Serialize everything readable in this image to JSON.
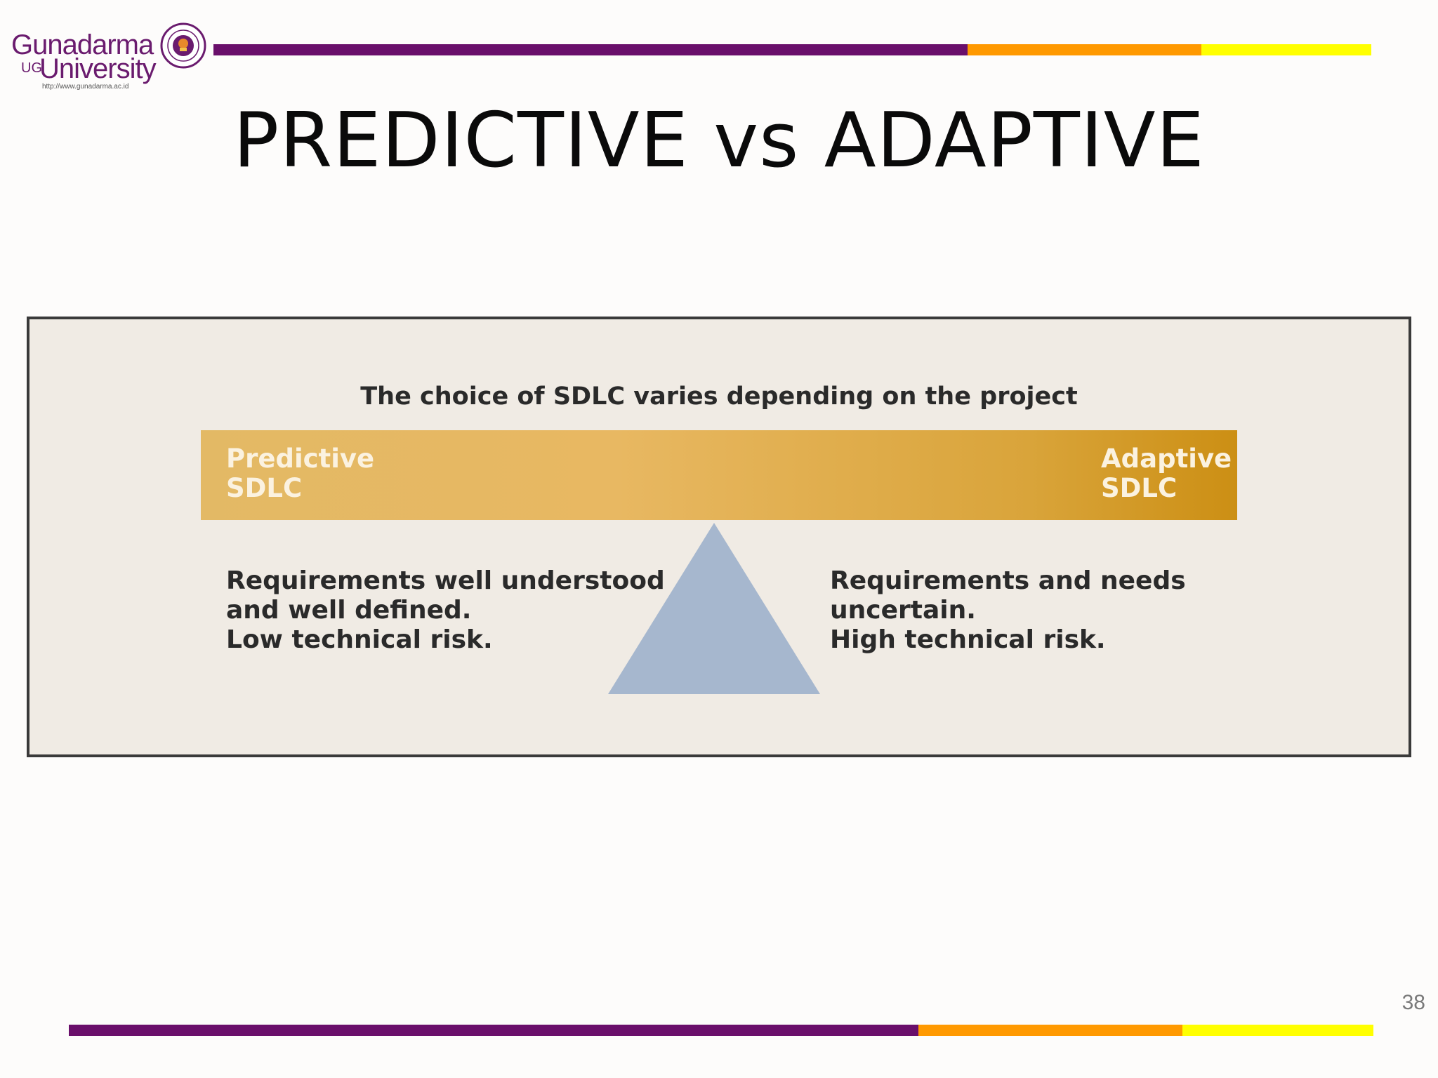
{
  "header": {
    "logo_name": "Gunadarma",
    "logo_ug": "UG",
    "logo_university": "University",
    "logo_url": "http://www.gunadarma.ac.id"
  },
  "colors": {
    "purple": "#6a0f6b",
    "orange": "#ff9900",
    "yellow": "#ffff00",
    "beam_start": "#e3b965",
    "beam_end": "#cc8f14",
    "pivot": "#a6b7ce"
  },
  "title": "PREDICTIVE vs ADAPTIVE",
  "diagram": {
    "caption": "The choice of SDLC varies depending on the project",
    "left_label": "Predictive\nSDLC",
    "right_label": "Adaptive\nSDLC",
    "left_desc": "Requirements well understood\nand well defined.\nLow technical risk.",
    "right_desc": "Requirements and needs\nuncertain.\nHigh technical risk."
  },
  "footer": {
    "page_number": "38"
  }
}
